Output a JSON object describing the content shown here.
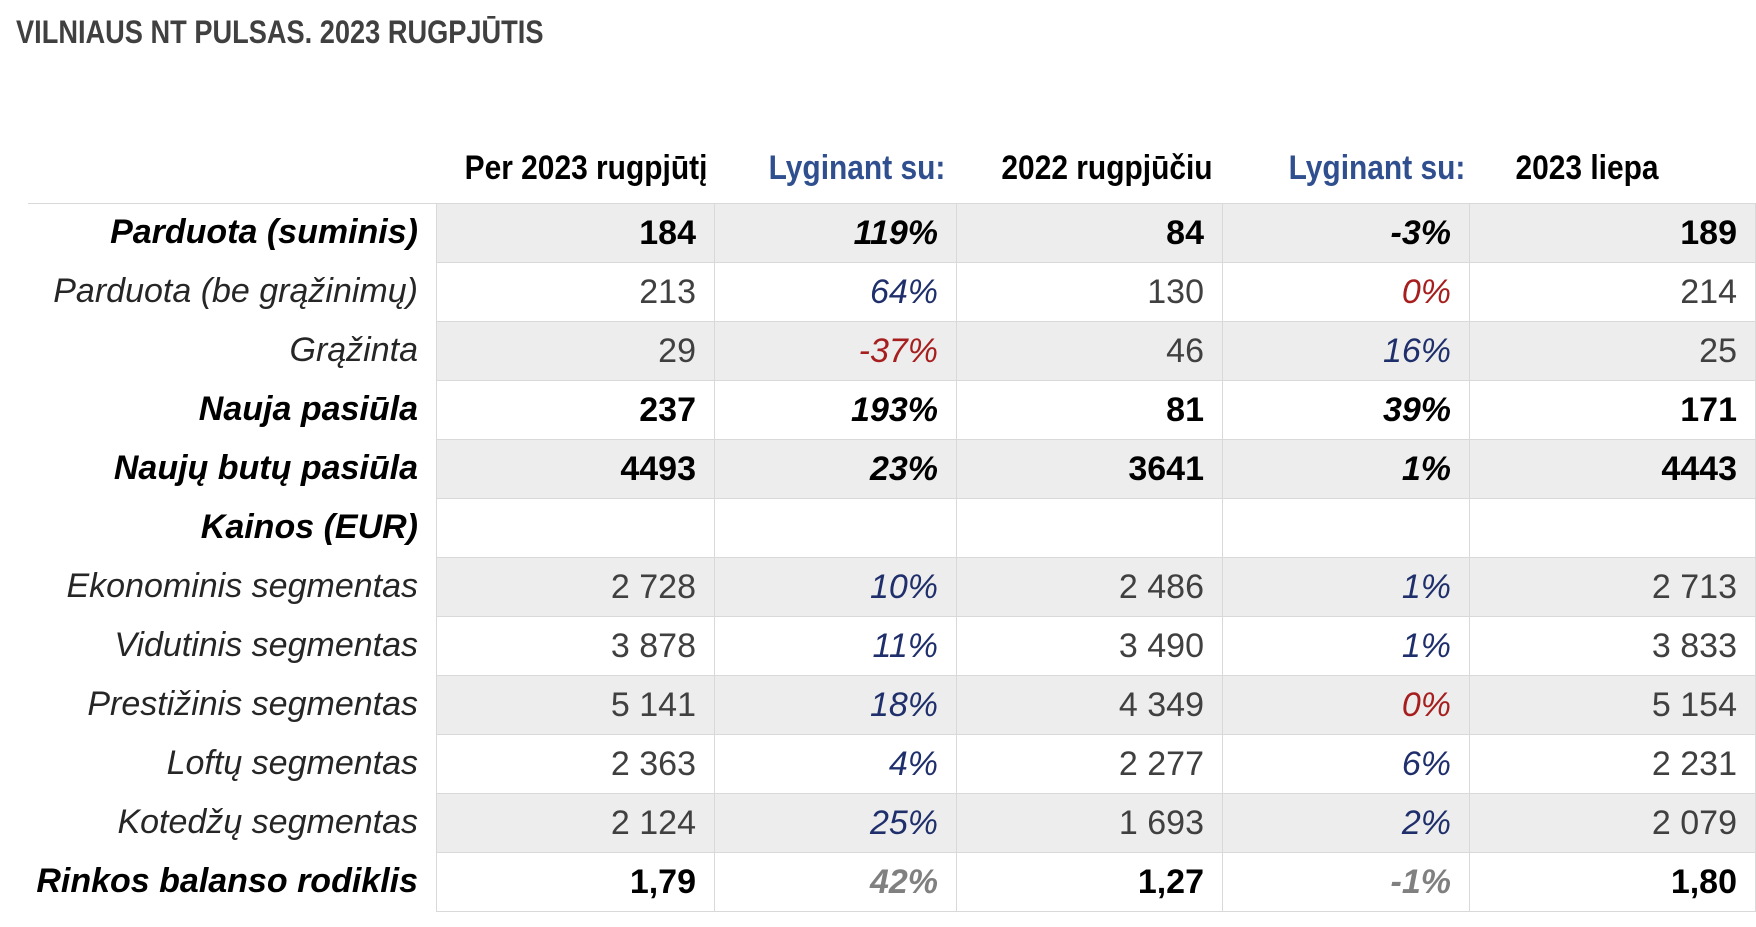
{
  "title": "VILNIAUS NT PULSAS. 2023 RUGPJŪTIS",
  "headers": {
    "current": "Per 2023 rugpjūtį",
    "compare1": "Lyginant su:",
    "prev_year": "2022 rugpjūčiu",
    "compare2": "Lyginant su:",
    "prev_month": "2023 liepa"
  },
  "rows": [
    {
      "label": "Parduota (suminis)",
      "current": "184",
      "chg_year": "119%",
      "prev_year": "84",
      "chg_month": "-3%",
      "prev_month": "189"
    },
    {
      "label": "Parduota (be grąžinimų)",
      "current": "213",
      "chg_year": "64%",
      "prev_year": "130",
      "chg_month": "0%",
      "prev_month": "214"
    },
    {
      "label": "Grąžinta",
      "current": "29",
      "chg_year": "-37%",
      "prev_year": "46",
      "chg_month": "16%",
      "prev_month": "25"
    },
    {
      "label": "Nauja pasiūla",
      "current": "237",
      "chg_year": "193%",
      "prev_year": "81",
      "chg_month": "39%",
      "prev_month": "171"
    },
    {
      "label": "Naujų butų pasiūla",
      "current": "4493",
      "chg_year": "23%",
      "prev_year": "3641",
      "chg_month": "1%",
      "prev_month": "4443"
    },
    {
      "label": "Kainos (EUR)",
      "current": "",
      "chg_year": "",
      "prev_year": "",
      "chg_month": "",
      "prev_month": ""
    },
    {
      "label": "Ekonominis segmentas",
      "current": "2 728",
      "chg_year": "10%",
      "prev_year": "2 486",
      "chg_month": "1%",
      "prev_month": "2 713"
    },
    {
      "label": "Vidutinis segmentas",
      "current": "3 878",
      "chg_year": "11%",
      "prev_year": "3 490",
      "chg_month": "1%",
      "prev_month": "3 833"
    },
    {
      "label": "Prestižinis segmentas",
      "current": "5 141",
      "chg_year": "18%",
      "prev_year": "4 349",
      "chg_month": "0%",
      "prev_month": "5 154"
    },
    {
      "label": "Loftų segmentas",
      "current": "2 363",
      "chg_year": "4%",
      "prev_year": "2 277",
      "chg_month": "6%",
      "prev_month": "2 231"
    },
    {
      "label": "Kotedžų segmentas",
      "current": "2 124",
      "chg_year": "25%",
      "prev_year": "1 693",
      "chg_month": "2%",
      "prev_month": "2 079"
    },
    {
      "label": "Rinkos balanso rodiklis",
      "current": "1,79",
      "chg_year": "42%",
      "prev_year": "1,27",
      "chg_month": "-1%",
      "prev_month": "1,80"
    }
  ],
  "colors": {
    "positive": "#1f2f6b",
    "negative": "#a61e1e",
    "neutral": "#808080",
    "header_blue": "#2f4f8f",
    "row_shade": "#ededed"
  }
}
